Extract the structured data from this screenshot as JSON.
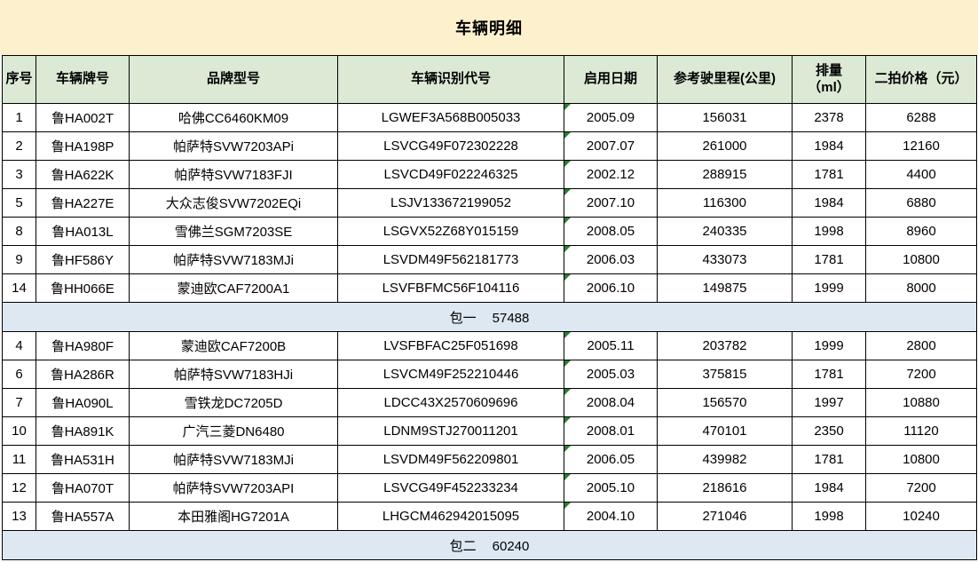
{
  "title": "车辆明细",
  "colors": {
    "title_bg": "#fdf0cd",
    "header_bg": "#dce9d5",
    "summary_bg": "#dde8f3",
    "border": "#000000",
    "error_indicator_green": "#2e7d32"
  },
  "table": {
    "columns": [
      "序号",
      "车辆牌号",
      "品牌型号",
      "车辆识别代号",
      "启用日期",
      "参考驶里程(公里)",
      "排量\n（ml）",
      "二拍价格（元）"
    ],
    "groups": [
      {
        "rows": [
          [
            "1",
            "鲁HA002T",
            "哈佛CC6460KM09",
            "LGWEF3A568B005033",
            "2005.09",
            "156031",
            "2378",
            "6288"
          ],
          [
            "2",
            "鲁HA198P",
            "帕萨特SVW7203APi",
            "LSVCG49F072302228",
            "2007.07",
            "261000",
            "1984",
            "12160"
          ],
          [
            "3",
            "鲁HA622K",
            "帕萨特SVW7183FJI",
            "LSVCD49F022246325",
            "2002.12",
            "288915",
            "1781",
            "4400"
          ],
          [
            "5",
            "鲁HA227E",
            "大众志俊SVW7202EQi",
            "LSJV133672199052",
            "2007.10",
            "116300",
            "1984",
            "6880"
          ],
          [
            "8",
            "鲁HA013L",
            "雪佛兰SGM7203SE",
            "LSGVX52Z68Y015159",
            "2008.05",
            "240335",
            "1998",
            "8960"
          ],
          [
            "9",
            "鲁HF586Y",
            "帕萨特SVW7183MJi",
            "LSVDM49F562181773",
            "2006.03",
            "433073",
            "1781",
            "10800"
          ],
          [
            "14",
            "鲁HH066E",
            "蒙迪欧CAF7200A1",
            "LSVFBFMC56F104116",
            "2006.10",
            "149875",
            "1999",
            "8000"
          ]
        ],
        "summary": {
          "label": "包一",
          "value": "57488"
        }
      },
      {
        "rows": [
          [
            "4",
            "鲁HA980F",
            "蒙迪欧CAF7200B",
            "LVSFBFAC25F051698",
            "2005.11",
            "203782",
            "1999",
            "2800"
          ],
          [
            "6",
            "鲁HA286R",
            "帕萨特SVW7183HJi",
            "LSVCM49F252210446",
            "2005.03",
            "375815",
            "1781",
            "7200"
          ],
          [
            "7",
            "鲁HA090L",
            "雪铁龙DC7205D",
            "LDCC43X2570609696",
            "2008.04",
            "156570",
            "1997",
            "10880"
          ],
          [
            "10",
            "鲁HA891K",
            "广汽三菱DN6480",
            "LDNM9STJ270011201",
            "2008.01",
            "470101",
            "2350",
            "11120"
          ],
          [
            "11",
            "鲁HA531H",
            "帕萨特SVW7183MJi",
            "LSVDM49F562209801",
            "2006.05",
            "439982",
            "1781",
            "10800"
          ],
          [
            "12",
            "鲁HA070T",
            "帕萨特SVW7203API",
            "LSVCG49F452233234",
            "2005.10",
            "218616",
            "1984",
            "7200"
          ],
          [
            "13",
            "鲁HA557A",
            "本田雅阁HG7201A",
            "LHGCM462942015095",
            "2004.10",
            "271046",
            "1998",
            "10240"
          ]
        ],
        "summary": {
          "label": "包二",
          "value": "60240"
        }
      }
    ],
    "date_column_index": 4
  }
}
